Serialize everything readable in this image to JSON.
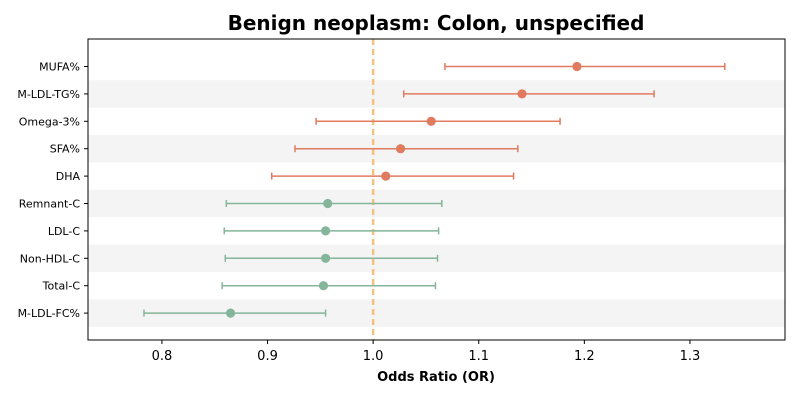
{
  "chart_data": {
    "type": "forest",
    "title": "Benign neoplasm: Colon, unspecified",
    "xlabel": "Odds Ratio (OR)",
    "ylabel": "",
    "xlim": [
      0.73,
      1.39
    ],
    "xticks": [
      0.8,
      0.9,
      1.0,
      1.1,
      1.2,
      1.3
    ],
    "xtick_labels": [
      "0.8",
      "0.9",
      "1.0",
      "1.1",
      "1.2",
      "1.3"
    ],
    "reference_line": 1.0,
    "grid": false,
    "row_shading": "alternating",
    "colors": {
      "increased_risk": "#e07b5f",
      "decreased_risk": "#85b59b",
      "reference_line": "#f2c27e",
      "band": "#f4f4f4"
    },
    "rows": [
      {
        "label": "MUFA%",
        "or": 1.193,
        "lower": 1.068,
        "upper": 1.333,
        "color": "increased_risk"
      },
      {
        "label": "M-LDL-TG%",
        "or": 1.141,
        "lower": 1.029,
        "upper": 1.266,
        "color": "increased_risk"
      },
      {
        "label": "Omega-3%",
        "or": 1.055,
        "lower": 0.946,
        "upper": 1.177,
        "color": "increased_risk"
      },
      {
        "label": "SFA%",
        "or": 1.026,
        "lower": 0.926,
        "upper": 1.137,
        "color": "increased_risk"
      },
      {
        "label": "DHA",
        "or": 1.012,
        "lower": 0.904,
        "upper": 1.133,
        "color": "increased_risk"
      },
      {
        "label": "Remnant-C",
        "or": 0.957,
        "lower": 0.861,
        "upper": 1.065,
        "color": "decreased_risk"
      },
      {
        "label": "LDL-C",
        "or": 0.955,
        "lower": 0.859,
        "upper": 1.062,
        "color": "decreased_risk"
      },
      {
        "label": "Non-HDL-C",
        "or": 0.955,
        "lower": 0.86,
        "upper": 1.061,
        "color": "decreased_risk"
      },
      {
        "label": "Total-C",
        "or": 0.953,
        "lower": 0.857,
        "upper": 1.059,
        "color": "decreased_risk"
      },
      {
        "label": "M-LDL-FC%",
        "or": 0.865,
        "lower": 0.783,
        "upper": 0.955,
        "color": "decreased_risk"
      }
    ]
  }
}
